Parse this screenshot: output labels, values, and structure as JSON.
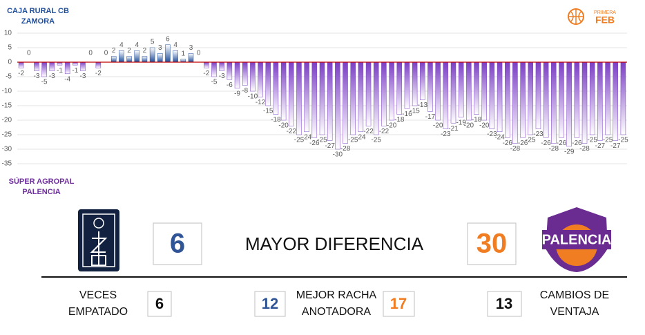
{
  "chart_data": {
    "type": "bar",
    "team_top": [
      "CAJA RURAL CB",
      "ZAMORA"
    ],
    "team_bottom": [
      "SÚPER AGROPAL",
      "PALENCIA"
    ],
    "values": [
      -2,
      0,
      -3,
      -5,
      -3,
      -1,
      -4,
      -1,
      -3,
      0,
      -2,
      0,
      2,
      4,
      2,
      4,
      2,
      5,
      3,
      6,
      4,
      1,
      3,
      0,
      -2,
      -5,
      -3,
      -6,
      -9,
      -8,
      -10,
      -12,
      -15,
      -18,
      -20,
      -22,
      -25,
      -24,
      -26,
      -25,
      -27,
      -30,
      -28,
      -25,
      -24,
      -22,
      -25,
      -22,
      -20,
      -18,
      -16,
      -15,
      -13,
      -17,
      -20,
      -23,
      -21,
      -19,
      -20,
      -18,
      -20,
      -23,
      -24,
      -26,
      -28,
      -26,
      -25,
      -23,
      -26,
      -28,
      -26,
      -29,
      -26,
      -28,
      -25,
      -27,
      -25,
      -27,
      -25
    ],
    "positive_color": "#1f4e9a",
    "negative_color": "#7b3fc4",
    "zero_line_color": "#c00000",
    "ylim": [
      -35,
      10
    ],
    "yticks": [
      -35,
      -30,
      -25,
      -20,
      -15,
      -10,
      -5,
      0,
      5,
      10
    ],
    "grid": true
  },
  "league_logo": {
    "small": "PRIMERA",
    "big": "FEB"
  },
  "right_logo": "PALENCIA",
  "max_diff": {
    "label": "MAYOR DIFERENCIA",
    "left": 6,
    "right": 30
  },
  "ties": {
    "lines": [
      "VECES",
      "EMPATADO"
    ],
    "value": 6
  },
  "best_run": {
    "lines": [
      "MEJOR RACHA",
      "ANOTADORA"
    ],
    "left": 12,
    "right": 17
  },
  "lead_changes": {
    "lines": [
      "CAMBIOS DE",
      "VENTAJA"
    ],
    "value": 13
  }
}
